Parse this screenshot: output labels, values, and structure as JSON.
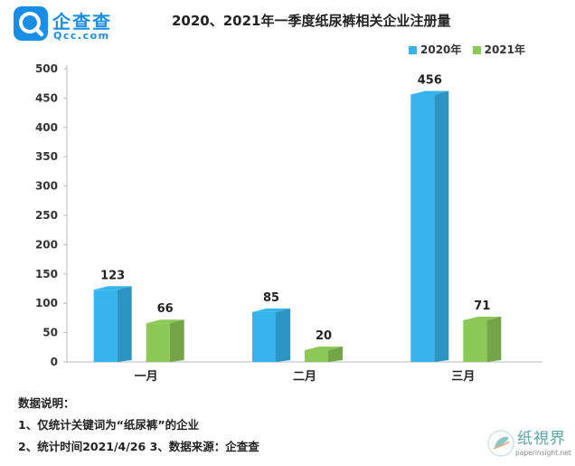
{
  "brand": {
    "name": "企查查",
    "domain": "Qcc.com",
    "color": "#1a8ee6"
  },
  "watermark": {
    "text": "纸視界",
    "url": "paperinsight.net"
  },
  "chart_data": {
    "type": "bar",
    "title": "2020、2021年一季度纸尿裤相关企业注册量",
    "categories": [
      "一月",
      "二月",
      "三月"
    ],
    "series": [
      {
        "name": "2020年",
        "values": [
          123,
          85,
          456
        ],
        "color": "#35b4ec"
      },
      {
        "name": "2021年",
        "values": [
          66,
          20,
          71
        ],
        "color": "#8cc856"
      }
    ],
    "ylim": [
      0,
      500
    ],
    "yticks": [
      0,
      50,
      100,
      150,
      200,
      250,
      300,
      350,
      400,
      450,
      500
    ],
    "xlabel": "",
    "ylabel": "",
    "grid": false,
    "legend": "top-right"
  },
  "notes": {
    "heading": "数据说明：",
    "line1": "1、仅统计关键词为“纸尿裤”的企业",
    "line2": "2、统计时间2021/4/26   3、数据来源：企查查"
  }
}
